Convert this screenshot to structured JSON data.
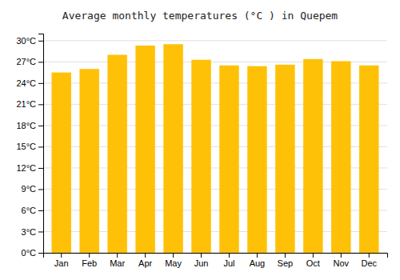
{
  "chart_data": {
    "type": "bar",
    "title": "Average monthly temperatures (°C ) in Quepem",
    "categories": [
      "Jan",
      "Feb",
      "Mar",
      "Apr",
      "May",
      "Jun",
      "Jul",
      "Aug",
      "Sep",
      "Oct",
      "Nov",
      "Dec"
    ],
    "values": [
      25.5,
      26.0,
      28.0,
      29.3,
      29.5,
      27.3,
      26.5,
      26.4,
      26.6,
      27.4,
      27.1,
      26.5
    ],
    "color": "#FFC107",
    "ylim": [
      0,
      31
    ],
    "yticks": [
      {
        "value": 0,
        "label": "0°C"
      },
      {
        "value": 3,
        "label": "3°C"
      },
      {
        "value": 6,
        "label": "6°C"
      },
      {
        "value": 9,
        "label": "9°C"
      },
      {
        "value": 12,
        "label": "12°C"
      },
      {
        "value": 15,
        "label": "15°C"
      },
      {
        "value": 18,
        "label": "18°C"
      },
      {
        "value": 21,
        "label": "21°C"
      },
      {
        "value": 24,
        "label": "24°C"
      },
      {
        "value": 27,
        "label": "27°C"
      },
      {
        "value": 30,
        "label": "30°C"
      }
    ],
    "grid": true
  }
}
